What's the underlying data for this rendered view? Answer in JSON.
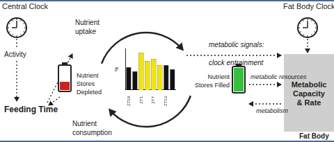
{
  "diagram": {
    "central_clock": "Central Clock",
    "activity": "Activity",
    "feeding_time": "Feeding Time",
    "nutrient_uptake": [
      "Nutrient",
      "uptake"
    ],
    "nutrient_consumption": [
      "Nutrient",
      "consumption"
    ],
    "stores_depleted": [
      "Nutrient",
      "Stores",
      "Depleted"
    ],
    "stores_filled": [
      "Nutrient",
      "Stores Filled"
    ],
    "metabolic_signals": [
      "metabolic signals:",
      "clock entrainment"
    ],
    "metabolic_resources": "metabolic resources",
    "metabolism": "metabolism",
    "fat_body_clock": "Fat Body Clock",
    "metabolic_capacity": [
      "Metabolic",
      "Capacity",
      "& Rate"
    ],
    "fat_body": "Fat Body"
  },
  "chart_data": {
    "type": "bar",
    "y_label": "%",
    "categories": [
      "ZT19",
      null,
      "ZT1",
      null,
      "ZT7",
      null,
      "ZT13",
      null
    ],
    "values": [
      55,
      45,
      90,
      70,
      75,
      60,
      60,
      50
    ],
    "colors": [
      "#111111",
      "#111111",
      "#f2e600",
      "#f2e600",
      "#f2e600",
      "#f2e600",
      "#111111",
      "#111111"
    ],
    "ylim": [
      0,
      100
    ],
    "grid": false,
    "tick_labels": "x"
  }
}
